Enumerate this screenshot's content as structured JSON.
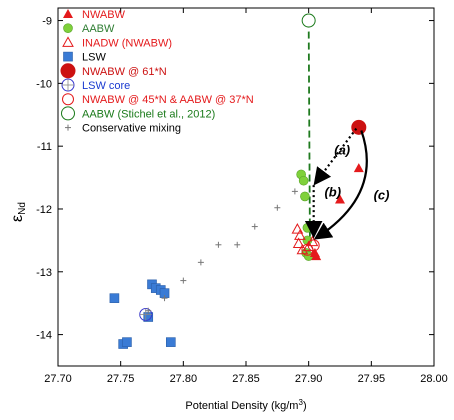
{
  "chart_data": {
    "type": "scatter",
    "xlabel": "Potential Density (kg/m",
    "xlabel_sup": "3",
    "xlabel_end": ")",
    "ylabel_main": "ε",
    "ylabel_sub": "Nd",
    "xlim": [
      27.7,
      28.0
    ],
    "ylim": [
      -14.5,
      -8.8
    ],
    "x_ticks": [
      "27.70",
      "27.75",
      "27.80",
      "27.85",
      "27.90",
      "27.95",
      "28.00"
    ],
    "x_tick_values": [
      27.7,
      27.75,
      27.8,
      27.85,
      27.9,
      27.95,
      28.0
    ],
    "y_ticks": [
      "-9",
      "-10",
      "-11",
      "-12",
      "-13",
      "-14"
    ],
    "y_tick_values": [
      -9,
      -10,
      -11,
      -12,
      -13,
      -14
    ],
    "grid": false,
    "legend_position": "top-left",
    "legend": [
      {
        "label": "NWABW",
        "marker": "triangle-filled",
        "color": "#e41a1c"
      },
      {
        "label": "AABW",
        "marker": "circle-filled",
        "color": "#7fd13b"
      },
      {
        "label": "INADW (NWABW)",
        "marker": "triangle-open",
        "color": "#e41a1c"
      },
      {
        "label": "LSW",
        "marker": "square-filled",
        "color": "#3a7bd5"
      },
      {
        "label": "NWABW @ 61*N",
        "marker": "circle-big-filled",
        "color": "#cc1111"
      },
      {
        "label": "LSW core",
        "marker": "circle-open-cross",
        "color": "#3a3ad0"
      },
      {
        "label": "NWABW @ 45*N & AABW @ 37*N",
        "marker": "circle-open",
        "color": "#e41a1c"
      },
      {
        "label": "AABW (Stichel et al., 2012)",
        "marker": "circle-open-big",
        "color": "#1a7a1a"
      },
      {
        "label": "Conservative mixing",
        "marker": "plus",
        "color": "#777777"
      }
    ],
    "series": [
      {
        "name": "LSW",
        "points": [
          [
            27.745,
            -13.42
          ],
          [
            27.752,
            -14.15
          ],
          [
            27.755,
            -14.12
          ],
          [
            27.772,
            -13.72
          ],
          [
            27.775,
            -13.2
          ],
          [
            27.778,
            -13.26
          ],
          [
            27.782,
            -13.29
          ],
          [
            27.785,
            -13.34
          ],
          [
            27.79,
            -14.12
          ]
        ]
      },
      {
        "name": "LSW core",
        "points": [
          [
            27.77,
            -13.68
          ]
        ]
      },
      {
        "name": "Conservative mixing",
        "points": [
          [
            27.772,
            -13.62
          ],
          [
            27.785,
            -13.42
          ],
          [
            27.8,
            -13.14
          ],
          [
            27.814,
            -12.85
          ],
          [
            27.828,
            -12.57
          ],
          [
            27.843,
            -12.57
          ],
          [
            27.857,
            -12.28
          ],
          [
            27.875,
            -11.98
          ],
          [
            27.889,
            -11.72
          ]
        ]
      },
      {
        "name": "AABW",
        "points": [
          [
            27.894,
            -11.45
          ],
          [
            27.896,
            -11.55
          ],
          [
            27.897,
            -11.8
          ],
          [
            27.899,
            -12.3
          ],
          [
            27.899,
            -12.5
          ],
          [
            27.898,
            -12.7
          ],
          [
            27.9,
            -12.75
          ]
        ]
      },
      {
        "name": "INADW (NWABW)",
        "points": [
          [
            27.891,
            -12.32
          ],
          [
            27.893,
            -12.42
          ],
          [
            27.892,
            -12.55
          ],
          [
            27.895,
            -12.65
          ],
          [
            27.9,
            -12.6
          ],
          [
            27.903,
            -12.52
          ]
        ]
      },
      {
        "name": "NWABW",
        "points": [
          [
            27.94,
            -11.35
          ],
          [
            27.925,
            -11.85
          ],
          [
            27.905,
            -12.7
          ],
          [
            27.906,
            -12.75
          ]
        ]
      },
      {
        "name": "NWABW @ 45*N & AABW @ 37*N",
        "points": [
          [
            27.899,
            -12.65
          ],
          [
            27.904,
            -12.58
          ]
        ]
      },
      {
        "name": "NWABW @ 61*N",
        "points": [
          [
            27.94,
            -10.7
          ]
        ]
      },
      {
        "name": "AABW (Stichel et al., 2012)",
        "points": [
          [
            27.9,
            -9.0
          ]
        ]
      }
    ],
    "lines": [
      {
        "name": "dashed-green",
        "from": [
          27.9,
          -9.0
        ],
        "to": [
          27.901,
          -12.45
        ]
      }
    ],
    "arrows": [
      {
        "label": "(a)",
        "from": [
          27.938,
          -10.72
        ],
        "to": [
          27.906,
          -11.57
        ],
        "style": "dotted"
      },
      {
        "label": "(b)",
        "from": [
          27.904,
          -11.62
        ],
        "to": [
          27.904,
          -12.4
        ],
        "style": "dotted"
      },
      {
        "label": "(c)",
        "from": [
          27.942,
          -10.75
        ],
        "to": [
          27.907,
          -12.45
        ],
        "style": "solid-curve"
      }
    ]
  }
}
